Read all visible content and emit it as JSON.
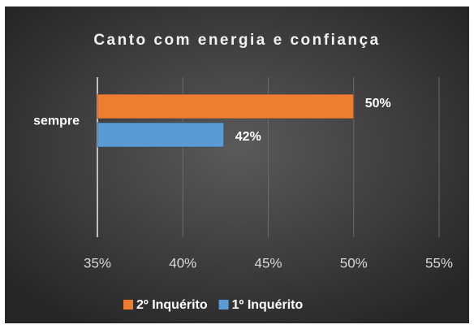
{
  "chart_data": {
    "type": "hbar",
    "title": "Canto com energia e confiança",
    "categories": [
      "sempre"
    ],
    "series": [
      {
        "name": "2º Inquérito",
        "color": "#ed7d31",
        "values": [
          50
        ],
        "value_labels": [
          "50%"
        ]
      },
      {
        "name": "1º Inquérito",
        "color": "#5b9bd5",
        "values": [
          42.4
        ],
        "value_labels": [
          "42%"
        ]
      }
    ],
    "xlim": [
      35,
      55
    ],
    "xticks": [
      {
        "value": 35,
        "label": "35%"
      },
      {
        "value": 40,
        "label": "40%"
      },
      {
        "value": 45,
        "label": "45%"
      },
      {
        "value": 50,
        "label": "50%"
      },
      {
        "value": 55,
        "label": "55%"
      }
    ],
    "grid": true,
    "legend": "bottom"
  }
}
